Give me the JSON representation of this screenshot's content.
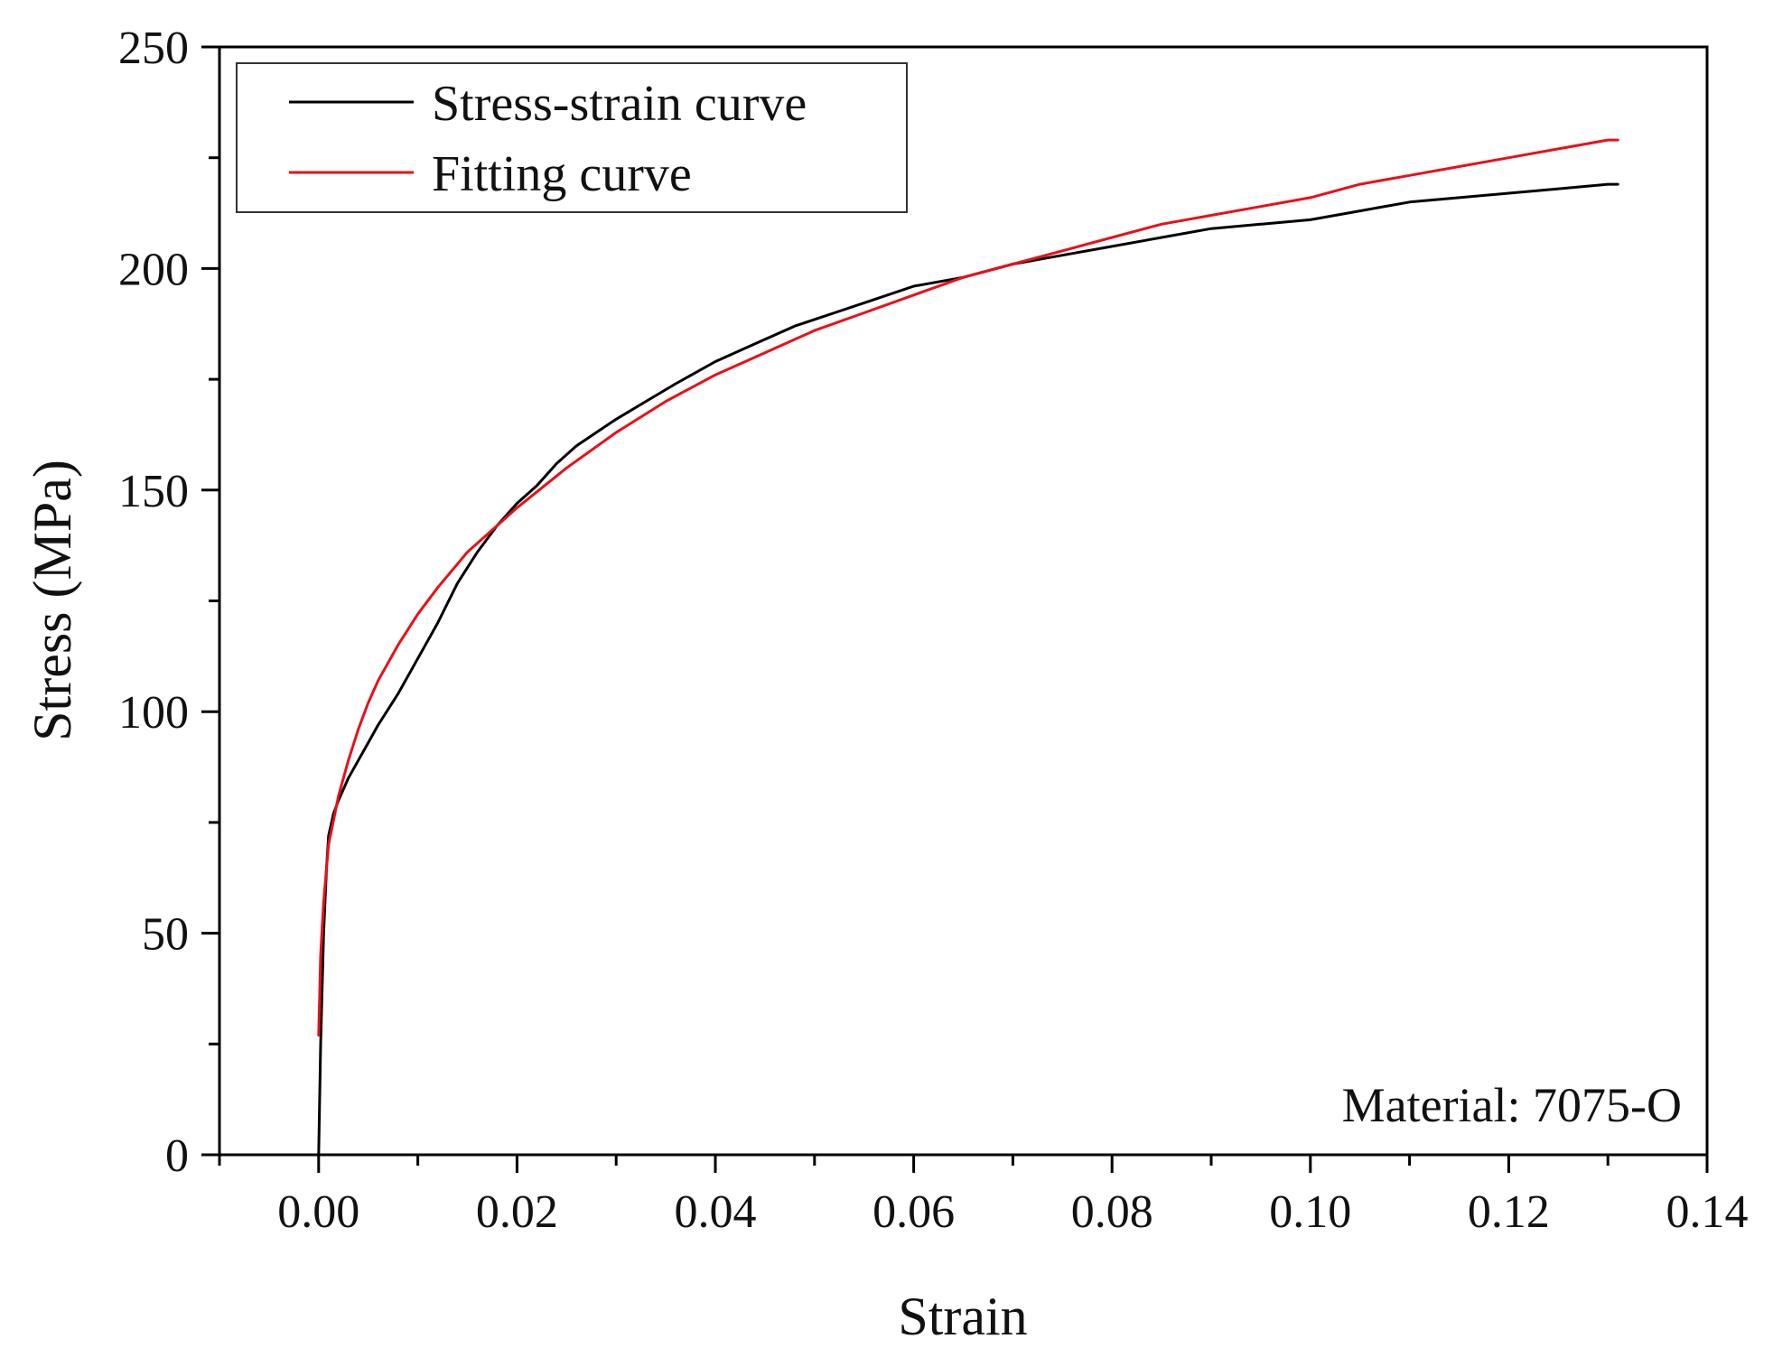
{
  "chart_data": {
    "type": "line",
    "title": "",
    "xlabel": "Strain",
    "ylabel": "Stress (MPa)",
    "xlim": [
      -0.01,
      0.14
    ],
    "ylim": [
      0,
      250
    ],
    "xticks": [
      0.0,
      0.02,
      0.04,
      0.06,
      0.08,
      0.1,
      0.12,
      0.14
    ],
    "xtick_labels": [
      "0.00",
      "0.02",
      "0.04",
      "0.06",
      "0.08",
      "0.10",
      "0.12",
      "0.14"
    ],
    "yticks": [
      0,
      50,
      100,
      150,
      200,
      250
    ],
    "ytick_labels": [
      "0",
      "50",
      "100",
      "150",
      "200",
      "250"
    ],
    "legend_position": "top-left",
    "annotation": "Material: 7075-O",
    "series": [
      {
        "name": "Stress-strain curve",
        "color": "#000000",
        "x": [
          0.0,
          0.0002,
          0.0005,
          0.0008,
          0.001,
          0.0015,
          0.002,
          0.003,
          0.004,
          0.005,
          0.006,
          0.008,
          0.01,
          0.012,
          0.014,
          0.016,
          0.018,
          0.02,
          0.022,
          0.024,
          0.026,
          0.028,
          0.03,
          0.033,
          0.036,
          0.04,
          0.044,
          0.048,
          0.052,
          0.056,
          0.06,
          0.065,
          0.07,
          0.075,
          0.08,
          0.085,
          0.09,
          0.095,
          0.1,
          0.105,
          0.11,
          0.115,
          0.12,
          0.125,
          0.13,
          0.131
        ],
        "values": [
          0,
          25,
          50,
          65,
          72,
          77,
          80,
          85,
          89,
          93,
          97,
          104,
          112,
          120,
          129,
          136,
          142,
          147,
          151,
          156,
          160,
          163,
          166,
          170,
          174,
          179,
          183,
          187,
          190,
          193,
          196,
          198,
          201,
          203,
          205,
          207,
          209,
          210,
          211,
          213,
          215,
          216,
          217,
          218,
          219,
          219
        ]
      },
      {
        "name": "Fitting curve",
        "color": "#e8101a",
        "x": [
          0.0,
          0.0002,
          0.0005,
          0.001,
          0.002,
          0.003,
          0.004,
          0.005,
          0.006,
          0.008,
          0.01,
          0.012,
          0.015,
          0.018,
          0.02,
          0.025,
          0.03,
          0.035,
          0.04,
          0.045,
          0.05,
          0.055,
          0.06,
          0.065,
          0.07,
          0.075,
          0.08,
          0.085,
          0.09,
          0.095,
          0.1,
          0.105,
          0.11,
          0.115,
          0.12,
          0.125,
          0.13,
          0.131
        ],
        "values": [
          27,
          45,
          57,
          70,
          81,
          89,
          96,
          102,
          107,
          115,
          122,
          128,
          136,
          142,
          146,
          155,
          163,
          170,
          176,
          181,
          186,
          190,
          194,
          198,
          201,
          204,
          207,
          210,
          212,
          214,
          216,
          219,
          221,
          223,
          225,
          227,
          229,
          229
        ]
      }
    ]
  }
}
